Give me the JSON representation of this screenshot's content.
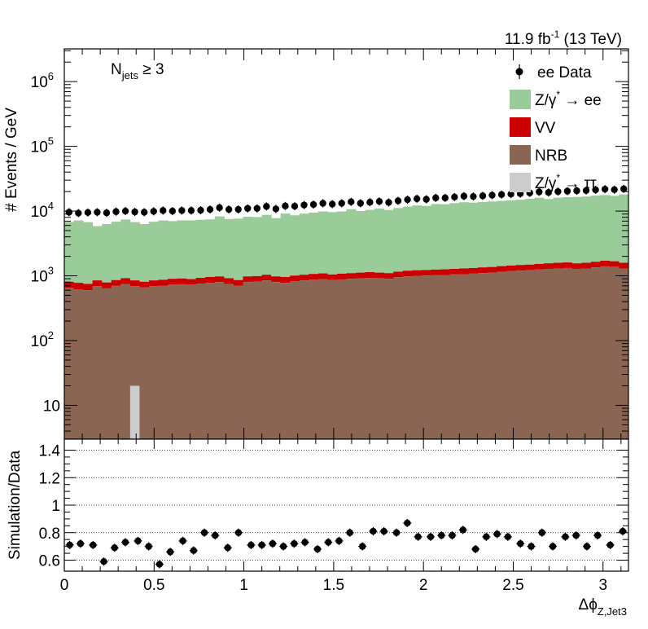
{
  "chart_data": [
    {
      "type": "bar",
      "panel": "main",
      "stacked": true,
      "log_y": true,
      "ylim": [
        3,
        3200000
      ],
      "xlim": [
        0,
        3.1416
      ],
      "ylabel": "# Events / GeV",
      "lumi_label": "11.9 fb",
      "lumi_sup": "-1",
      "lumi_suffix": " (13 TeV)",
      "selection_label_main": "N",
      "selection_label_sub": "jets",
      "selection_label_rest": " ≥ 3",
      "y_ticks": [
        {
          "value": 1000000,
          "base": "10",
          "exp": "6"
        },
        {
          "value": 100000,
          "base": "10",
          "exp": "5"
        },
        {
          "value": 10000,
          "base": "10",
          "exp": "4"
        },
        {
          "value": 1000,
          "base": "10",
          "exp": "3"
        },
        {
          "value": 100,
          "base": "10",
          "exp": "2"
        },
        {
          "value": 10,
          "base": "10",
          "exp": ""
        }
      ],
      "colors": {
        "zee": "#99cc99",
        "vv": "#cc0000",
        "nrb": "#8b6553",
        "ztautau": "#cccccc",
        "data": "#000000"
      },
      "legend": [
        {
          "key": "data",
          "type": "marker",
          "text": "ee Data"
        },
        {
          "key": "zee",
          "type": "box",
          "text": "Z/γ",
          "sup": "*",
          "rest": " → ee"
        },
        {
          "key": "vv",
          "type": "box",
          "text": "VV",
          "sup": "",
          "rest": ""
        },
        {
          "key": "nrb",
          "type": "box",
          "text": "NRB",
          "sup": "",
          "rest": ""
        },
        {
          "key": "ztautau",
          "type": "box",
          "text": "Z/γ",
          "sup": "*",
          "rest": " → ττ"
        }
      ],
      "x_bin_edges_start": 0,
      "bin_width": 0.05236,
      "series": [
        {
          "name": "NRB",
          "values": [
            650,
            620,
            600,
            690,
            640,
            700,
            750,
            690,
            660,
            690,
            700,
            730,
            740,
            730,
            760,
            780,
            800,
            750,
            700,
            800,
            810,
            850,
            800,
            780,
            820,
            850,
            870,
            890,
            860,
            880,
            900,
            910,
            930,
            920,
            900,
            950,
            980,
            1000,
            1010,
            1020,
            1030,
            1050,
            1060,
            1080,
            1100,
            1120,
            1150,
            1180,
            1200,
            1220,
            1250,
            1280,
            1300,
            1320,
            1280,
            1300,
            1350,
            1400,
            1380,
            1300
          ]
        },
        {
          "name": "VV",
          "values": [
            160,
            160,
            150,
            160,
            150,
            160,
            170,
            160,
            150,
            160,
            170,
            170,
            170,
            160,
            170,
            180,
            180,
            170,
            160,
            180,
            180,
            190,
            180,
            180,
            190,
            190,
            200,
            200,
            190,
            200,
            200,
            210,
            210,
            200,
            200,
            210,
            220,
            220,
            220,
            230,
            230,
            230,
            240,
            240,
            250,
            250,
            260,
            260,
            270,
            270,
            280,
            280,
            290,
            290,
            280,
            290,
            300,
            310,
            300,
            290
          ]
        },
        {
          "name": "Z/γ* → ee",
          "values": [
            6000,
            6400,
            6000,
            5000,
            5500,
            6000,
            6500,
            5900,
            5500,
            6000,
            6300,
            6100,
            6300,
            6300,
            6400,
            6500,
            7300,
            6600,
            6800,
            7200,
            7100,
            7700,
            6800,
            8200,
            7600,
            8100,
            8400,
            8800,
            8600,
            8800,
            9600,
            8900,
            9300,
            9800,
            9300,
            10000,
            10500,
            11000,
            10800,
            11600,
            11500,
            12000,
            12400,
            12200,
            12500,
            12700,
            13000,
            13200,
            13500,
            14000,
            14500,
            13800,
            14500,
            14800,
            15000,
            15200,
            15700,
            16000,
            15500,
            16500
          ]
        },
        {
          "name": "Z/γ* → ττ",
          "values": [
            1.2,
            0,
            0,
            0,
            0,
            0,
            0,
            20,
            0,
            0,
            0,
            0,
            0,
            0,
            0,
            0,
            0,
            0,
            0,
            0,
            0,
            0,
            0,
            0,
            0,
            0,
            1.2,
            0,
            0,
            0,
            0,
            0,
            0,
            0,
            1.2,
            0,
            0,
            0,
            0,
            0,
            0,
            0,
            0,
            0,
            0,
            0,
            0,
            0,
            0,
            0,
            1.2,
            0,
            1.8,
            1.2,
            0,
            0,
            0,
            0,
            1.1,
            0
          ]
        }
      ],
      "data_points": [
        9600,
        9300,
        9500,
        9600,
        9400,
        9800,
        10000,
        9700,
        9600,
        9900,
        10200,
        10000,
        10200,
        10200,
        10300,
        10600,
        11300,
        10600,
        10600,
        11000,
        11000,
        11800,
        10800,
        12000,
        11900,
        12400,
        12600,
        13200,
        12800,
        13200,
        13900,
        13200,
        13700,
        14100,
        13600,
        14400,
        15000,
        15500,
        15200,
        16000,
        16000,
        16500,
        17000,
        16800,
        17200,
        17600,
        18000,
        18300,
        18600,
        19100,
        19800,
        19400,
        20000,
        20300,
        20600,
        20800,
        21300,
        21800,
        21400,
        22000
      ]
    },
    {
      "type": "scatter",
      "panel": "ratio",
      "ylabel": "Simulation/Data",
      "xlabel_main": "Δϕ",
      "xlabel_sub": "Z,Jet3",
      "ylim": [
        0.52,
        1.48
      ],
      "xlim": [
        0,
        3.1416
      ],
      "y_ticks": [
        {
          "value": 1.4,
          "label": "1.4"
        },
        {
          "value": 1.2,
          "label": "1.2"
        },
        {
          "value": 1,
          "label": "1"
        },
        {
          "value": 0.8,
          "label": "0.8"
        },
        {
          "value": 0.6,
          "label": "0.6"
        }
      ],
      "x_ticks": [
        {
          "value": 0,
          "label": "0"
        },
        {
          "value": 0.5,
          "label": "0.5"
        },
        {
          "value": 1,
          "label": "1"
        },
        {
          "value": 1.5,
          "label": "1.5"
        },
        {
          "value": 2,
          "label": "2"
        },
        {
          "value": 2.5,
          "label": "2.5"
        },
        {
          "value": 3,
          "label": "3"
        }
      ],
      "grid": true,
      "values": [
        0.71,
        0.72,
        0.71,
        0.59,
        0.69,
        0.73,
        0.74,
        0.7,
        0.57,
        0.66,
        0.74,
        0.67,
        0.8,
        0.78,
        0.69,
        0.8,
        0.71,
        0.71,
        0.72,
        0.7,
        0.72,
        0.73,
        0.68,
        0.73,
        0.74,
        0.8,
        0.7,
        0.81,
        0.81,
        0.8,
        0.87,
        0.77,
        0.77,
        0.78,
        0.78,
        0.82,
        0.68,
        0.77,
        0.79,
        0.77,
        0.72,
        0.7,
        0.8,
        0.7,
        0.77,
        0.78,
        0.7,
        0.78,
        0.71,
        0.81
      ],
      "x": [
        0.03,
        0.09,
        0.16,
        0.22,
        0.28,
        0.34,
        0.41,
        0.47,
        0.53,
        0.59,
        0.66,
        0.72,
        0.78,
        0.84,
        0.91,
        0.97,
        1.04,
        1.1,
        1.16,
        1.22,
        1.28,
        1.34,
        1.41,
        1.47,
        1.53,
        1.59,
        1.66,
        1.72,
        1.78,
        1.85,
        1.91,
        1.97,
        2.04,
        2.1,
        2.16,
        2.22,
        2.29,
        2.35,
        2.41,
        2.47,
        2.54,
        2.6,
        2.66,
        2.72,
        2.79,
        2.85,
        2.91,
        2.97,
        3.04,
        3.11
      ],
      "errors": 0.03
    }
  ]
}
